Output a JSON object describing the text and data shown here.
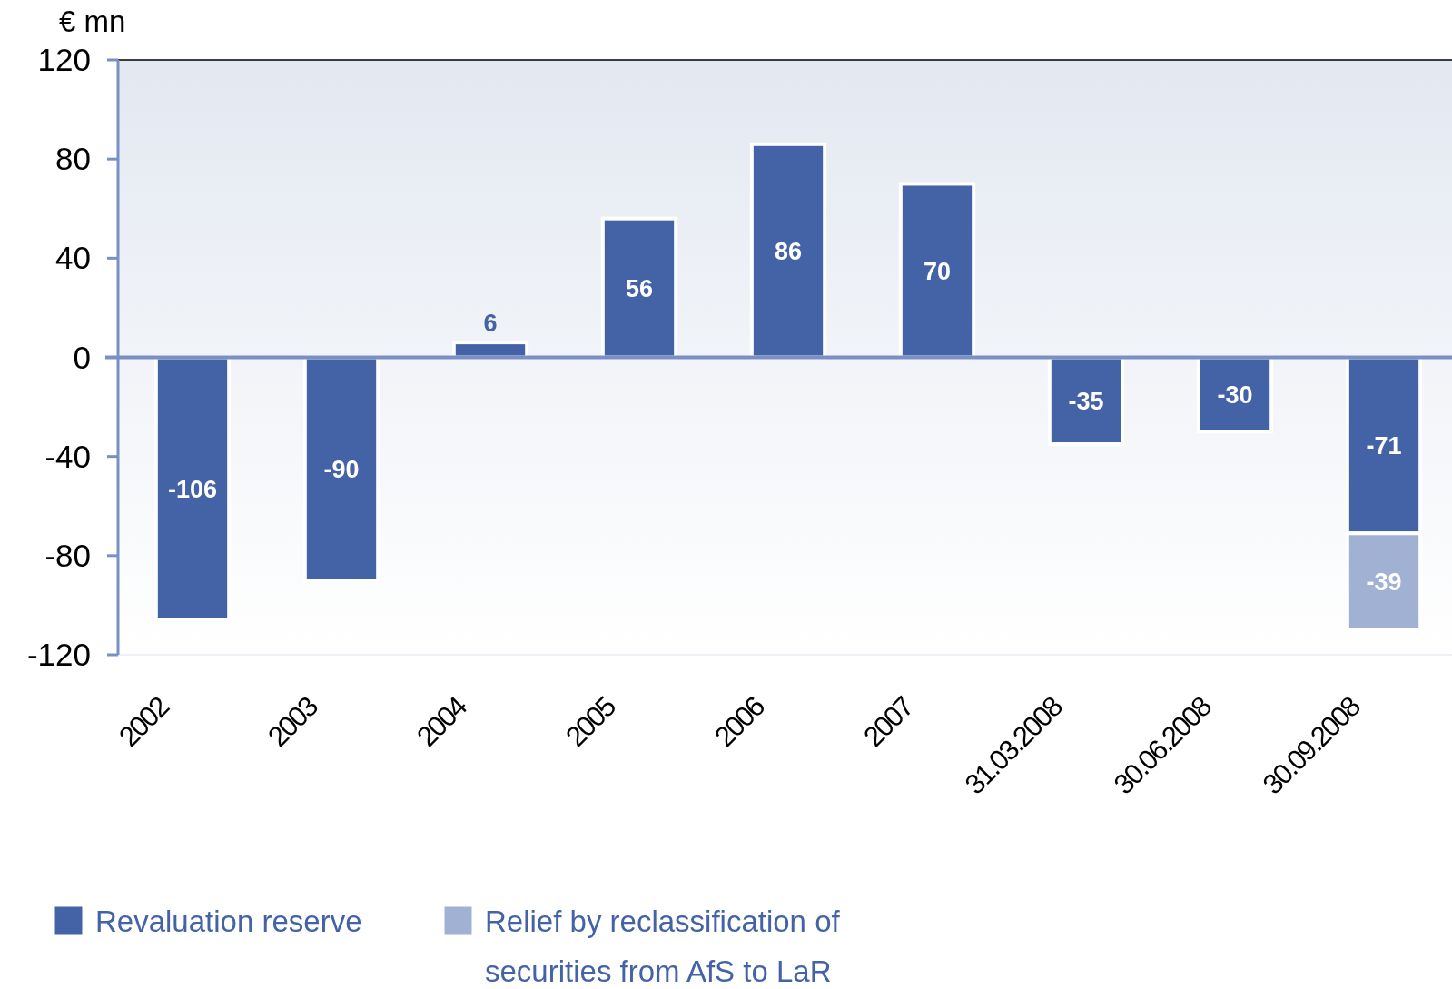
{
  "chart_data": {
    "type": "bar",
    "ylabel": "€ mn",
    "categories": [
      "2002",
      "2003",
      "2004",
      "2005",
      "2006",
      "2007",
      "31.03.2008",
      "30.06.2008",
      "30.09.2008"
    ],
    "series": [
      {
        "name": "Revaluation reserve",
        "color": "#4363a6",
        "values": [
          -106,
          -90,
          6,
          56,
          86,
          70,
          -35,
          -30,
          -71
        ]
      },
      {
        "name": "Relief by reclassification of securities from AfS to LaR",
        "color": "#a1b1d3",
        "values": [
          null,
          null,
          null,
          null,
          null,
          null,
          null,
          null,
          -39
        ]
      }
    ],
    "ref_lines": [
      {
        "axis": "y",
        "value": 0,
        "color": "#7b8fc4"
      }
    ],
    "stacked": true,
    "ylim": [
      -120,
      120
    ],
    "yticks": [
      -120,
      -80,
      -40,
      0,
      40,
      80,
      120
    ],
    "data_labels": true,
    "legend": "bottom",
    "grid": false
  }
}
